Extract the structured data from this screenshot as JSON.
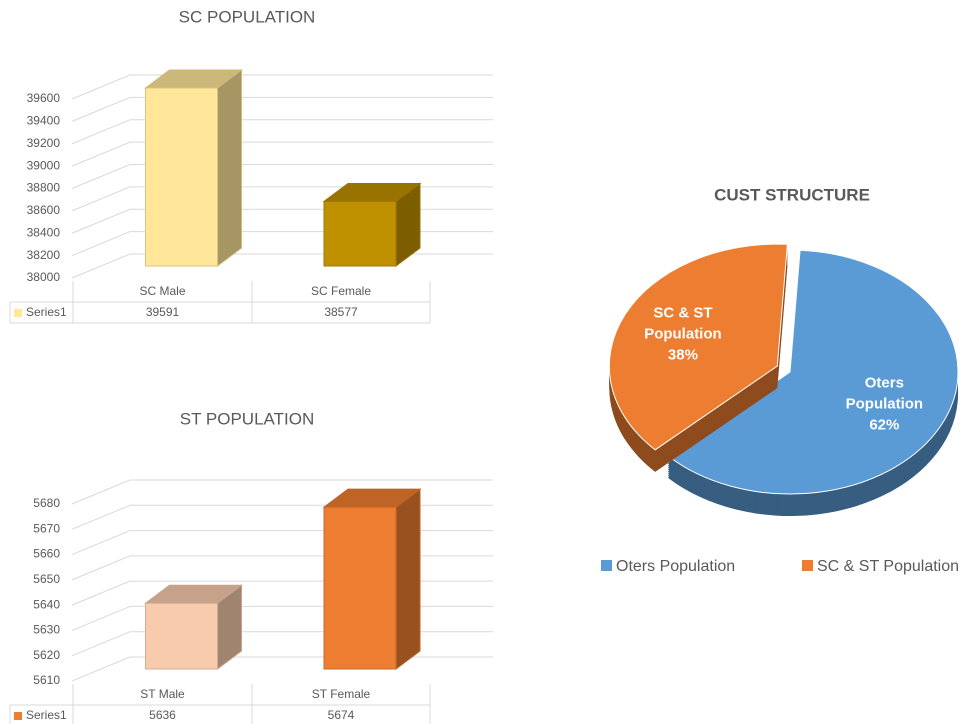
{
  "chart_data": [
    {
      "type": "bar",
      "title": "SC POPULATION",
      "categories": [
        "SC Male",
        "SC Female"
      ],
      "series": [
        {
          "name": "Series1",
          "color": "#FFE699",
          "point_colors": [
            "#FFE699",
            "#BF9000"
          ],
          "values": [
            39591,
            38577
          ]
        }
      ],
      "ylim": [
        38000,
        39600
      ],
      "yticks": [
        38000,
        38200,
        38400,
        38600,
        38800,
        39000,
        39200,
        39400,
        39600
      ],
      "grid": true
    },
    {
      "type": "bar",
      "title": "ST POPULATION",
      "categories": [
        "ST Male",
        "ST Female"
      ],
      "series": [
        {
          "name": "Series1",
          "color": "#ED7D31",
          "point_colors": [
            "#F8CBAD",
            "#ED7D31"
          ],
          "values": [
            5636,
            5674
          ]
        }
      ],
      "ylim": [
        5610,
        5680
      ],
      "yticks": [
        5610,
        5620,
        5630,
        5640,
        5650,
        5660,
        5670,
        5680
      ],
      "grid": true
    },
    {
      "type": "pie",
      "title": "CUST STRUCTURE",
      "categories": [
        "Oters Population",
        "SC & ST Population"
      ],
      "values": [
        62,
        38
      ],
      "value_labels": [
        "62%",
        "38%"
      ],
      "colors": [
        "#5B9BD5",
        "#ED7D31"
      ],
      "legend": "bottom"
    }
  ]
}
